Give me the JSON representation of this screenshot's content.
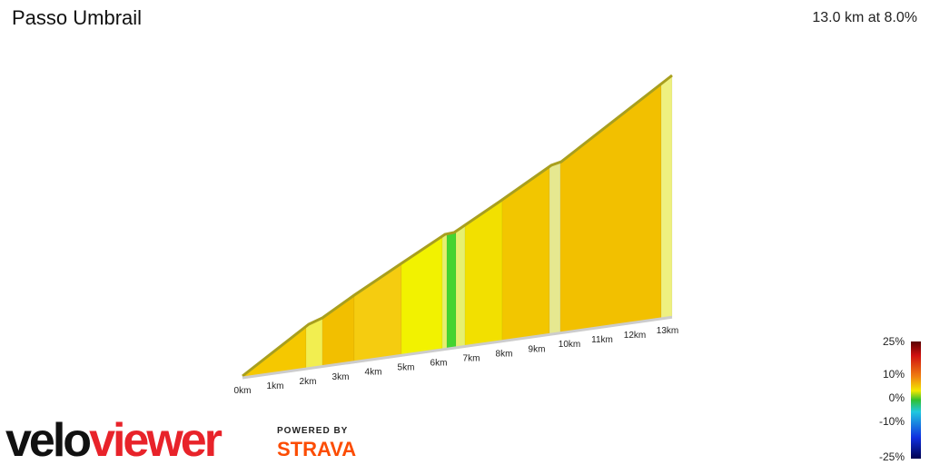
{
  "header": {
    "title": "Passo Umbrail",
    "summary": "13.0 km at 8.0%"
  },
  "profile": {
    "km_labels": [
      "0km",
      "1km",
      "2km",
      "3km",
      "4km",
      "5km",
      "6km",
      "7km",
      "8km",
      "9km",
      "10km",
      "11km",
      "12km",
      "13km"
    ],
    "segment_colors": [
      "#f5c800",
      "#f2ee50",
      "#f2bf00",
      "#f5cc10",
      "#f2f200",
      "#e6f070",
      "#44d430",
      "#e6f070",
      "#f2e000",
      "#f2c600",
      "#e6e890",
      "#f2c000",
      "#eef080"
    ],
    "edge_color": "#a89f1e"
  },
  "legend": {
    "labels": [
      "25%",
      "10%",
      "0%",
      "-10%",
      "-25%"
    ]
  },
  "branding": {
    "logo_parts": [
      "velo",
      "viewer"
    ],
    "powered_by": "POWERED BY",
    "partner": "STRAVA"
  }
}
